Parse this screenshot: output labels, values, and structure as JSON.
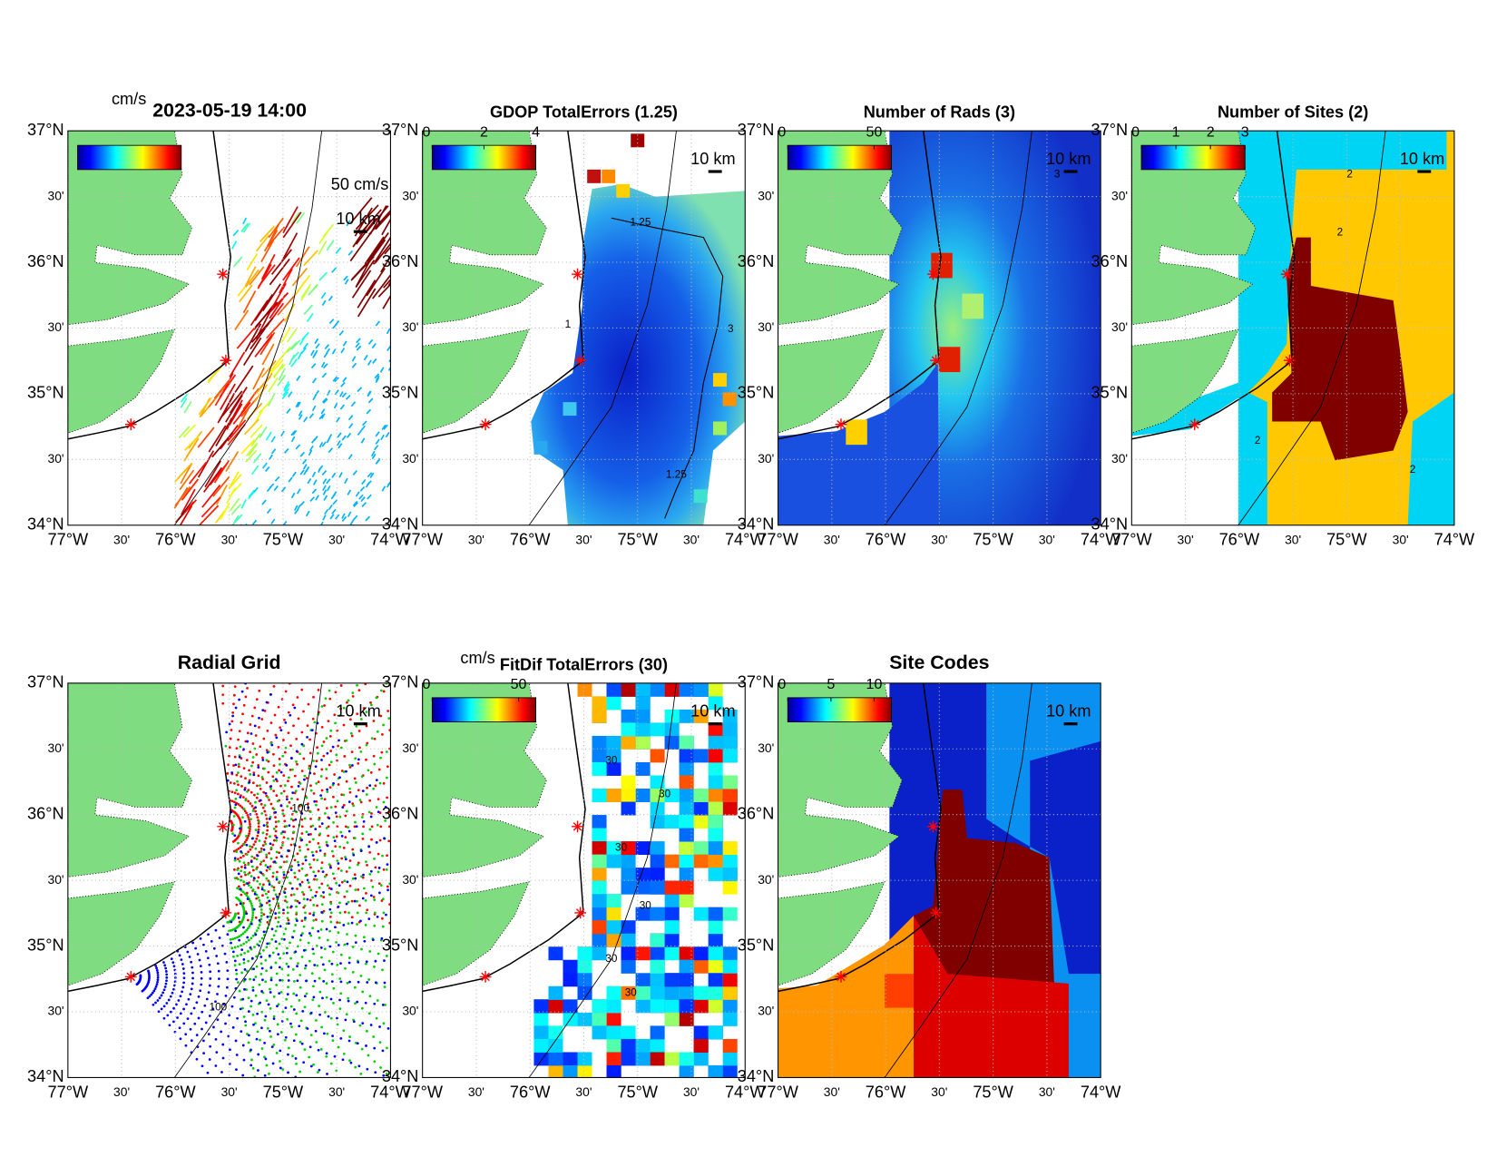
{
  "axes": {
    "x_labels": [
      "77°W",
      "30'",
      "76°W",
      "30'",
      "75°W",
      "30'",
      "74°W"
    ],
    "y_labels": [
      "37°N",
      "30'",
      "36°N",
      "30'",
      "35°N",
      "30'",
      "34°N"
    ]
  },
  "panels": [
    {
      "kind": "vectors",
      "title": "2023-05-19 14:00",
      "colorbar_unit": "cm/s",
      "vector_scale_label": "50 cm/s",
      "distance_label": "10 km"
    },
    {
      "kind": "gdop",
      "title": "GDOP TotalErrors (1.25)",
      "colorbar_ticks": [
        0,
        2,
        4
      ],
      "colorbar_limits": [
        0,
        4
      ],
      "distance_label": "10 km",
      "contour_labels": [
        "1.25",
        "1",
        "3",
        "1.25"
      ]
    },
    {
      "kind": "rads",
      "title": "Number of Rads (3)",
      "colorbar_ticks": [
        0,
        50
      ],
      "colorbar_limits": [
        0,
        60
      ],
      "distance_label": "10 km",
      "contour_labels": [
        "3"
      ]
    },
    {
      "kind": "sites",
      "title": "Number of Sites (2)",
      "colorbar_ticks": [
        0,
        1,
        2,
        3
      ],
      "colorbar_limits": [
        0,
        3
      ],
      "distance_label": "10 km",
      "contour_labels": [
        "2",
        "2",
        "2",
        "2"
      ]
    },
    {
      "kind": "radial",
      "title": "Radial Grid",
      "distance_label": "10 km",
      "contour_labels": [
        "100",
        "100"
      ]
    },
    {
      "kind": "fitdif",
      "title": "FitDif TotalErrors (30)",
      "colorbar_unit": "cm/s",
      "colorbar_ticks": [
        0,
        50
      ],
      "colorbar_limits": [
        0,
        60
      ],
      "distance_label": "10 km",
      "contour_labels": [
        "30",
        "30",
        "30",
        "30",
        "30",
        "30"
      ]
    },
    {
      "kind": "codes",
      "title": "Site Codes",
      "colorbar_ticks": [
        0,
        5,
        10
      ],
      "colorbar_limits": [
        0,
        12
      ],
      "distance_label": "10 km"
    }
  ]
}
